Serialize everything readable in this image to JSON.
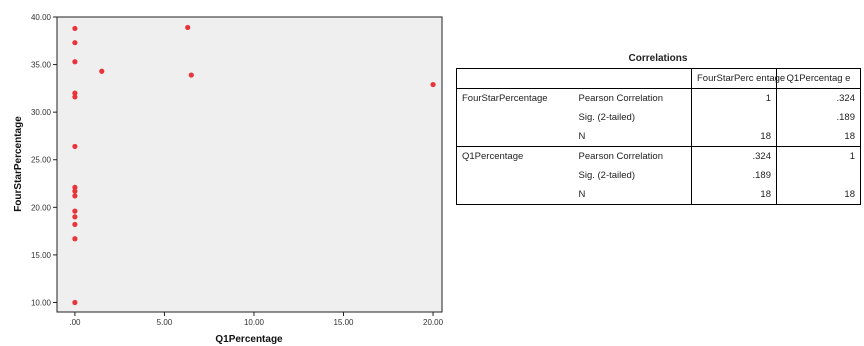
{
  "chart_data": [
    {
      "type": "scatter",
      "title": "",
      "xlabel": "Q1Percentage",
      "ylabel": "FourStarPercentage",
      "xlim": [
        -1,
        20.5
      ],
      "ylim": [
        9,
        40
      ],
      "x_ticks": [
        0,
        5,
        10,
        15,
        20
      ],
      "x_tick_labels": [
        ".00",
        "5.00",
        "10.00",
        "15.00",
        "20.00"
      ],
      "y_ticks": [
        10,
        15,
        20,
        25,
        30,
        35,
        40
      ],
      "y_tick_labels": [
        "10.00",
        "15.00",
        "20.00",
        "25.00",
        "30.00",
        "35.00",
        "40.00"
      ],
      "grid": false,
      "point_color": "#e8343a",
      "plot_background": "#efefef",
      "points": [
        {
          "x": 0,
          "y": 38.8
        },
        {
          "x": 0,
          "y": 37.3
        },
        {
          "x": 0,
          "y": 35.3
        },
        {
          "x": 0,
          "y": 32.0
        },
        {
          "x": 0,
          "y": 31.6
        },
        {
          "x": 0,
          "y": 26.4
        },
        {
          "x": 0,
          "y": 22.1
        },
        {
          "x": 0,
          "y": 21.7
        },
        {
          "x": 0,
          "y": 21.2
        },
        {
          "x": 0,
          "y": 19.6
        },
        {
          "x": 0,
          "y": 19.0
        },
        {
          "x": 0,
          "y": 18.2
        },
        {
          "x": 0,
          "y": 16.7
        },
        {
          "x": 0,
          "y": 10.0
        },
        {
          "x": 1.5,
          "y": 34.3
        },
        {
          "x": 6.3,
          "y": 38.9
        },
        {
          "x": 6.5,
          "y": 33.9
        },
        {
          "x": 20.0,
          "y": 32.9
        }
      ]
    },
    {
      "type": "table",
      "title": "Correlations",
      "columns": [
        "FourStarPerc entage",
        "Q1Percentag e"
      ],
      "rows": [
        {
          "variable": "FourStarPercentage",
          "stat": "Pearson Correlation",
          "values": [
            "1",
            ".324"
          ]
        },
        {
          "variable": "",
          "stat": "Sig. (2-tailed)",
          "values": [
            "",
            ".189"
          ]
        },
        {
          "variable": "",
          "stat": "N",
          "values": [
            "18",
            "18"
          ]
        },
        {
          "variable": "Q1Percentage",
          "stat": "Pearson Correlation",
          "values": [
            ".324",
            "1"
          ]
        },
        {
          "variable": "",
          "stat": "Sig. (2-tailed)",
          "values": [
            ".189",
            ""
          ]
        },
        {
          "variable": "",
          "stat": "N",
          "values": [
            "18",
            "18"
          ]
        }
      ]
    }
  ]
}
